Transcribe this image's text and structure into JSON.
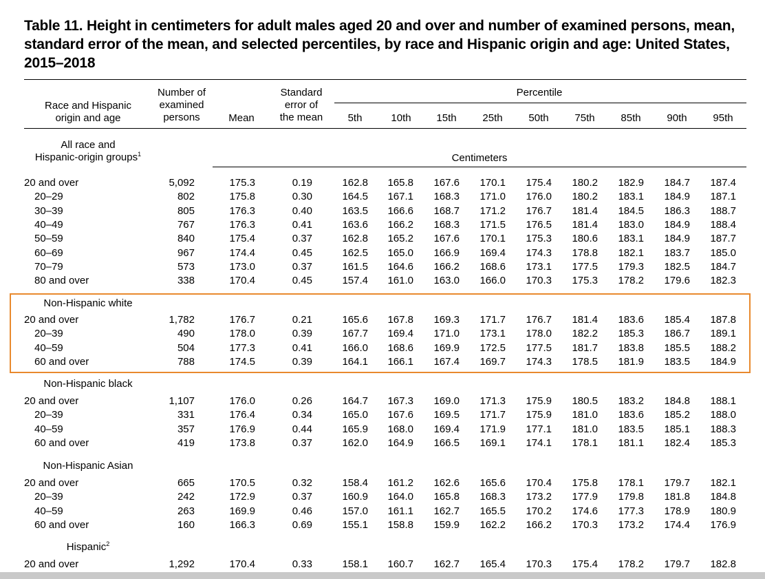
{
  "title": "Table 11. Height in centimeters for adult males aged 20 and over and number of examined persons, mean, standard error of the mean, and selected percentiles, by race and Hispanic origin and age: United States, 2015–2018",
  "headers": {
    "race_line1": "Race and Hispanic",
    "race_line2": "origin and age",
    "number_line1": "Number of",
    "number_line2": "examined",
    "number_line3": "persons",
    "mean": "Mean",
    "se_line1": "Standard",
    "se_line2": "error of",
    "se_line3": "the mean",
    "percentile": "Percentile",
    "percentiles": [
      "5th",
      "10th",
      "15th",
      "25th",
      "50th",
      "75th",
      "85th",
      "90th",
      "95th"
    ],
    "all_groups_line1": "All race and",
    "all_groups_line2": "Hispanic-origin groups",
    "all_groups_sup": "1",
    "centimeters": "Centimeters"
  },
  "sections": [
    {
      "name": "",
      "rows": [
        {
          "label": "20 and over",
          "n": "5,092",
          "mean": "175.3",
          "se": "0.19",
          "p": [
            "162.8",
            "165.8",
            "167.6",
            "170.1",
            "175.4",
            "180.2",
            "182.9",
            "184.7",
            "187.4"
          ]
        },
        {
          "label": "20–29",
          "n": "802",
          "mean": "175.8",
          "se": "0.30",
          "p": [
            "164.5",
            "167.1",
            "168.3",
            "171.0",
            "176.0",
            "180.2",
            "183.1",
            "184.9",
            "187.1"
          ]
        },
        {
          "label": "30–39",
          "n": "805",
          "mean": "176.3",
          "se": "0.40",
          "p": [
            "163.5",
            "166.6",
            "168.7",
            "171.2",
            "176.7",
            "181.4",
            "184.5",
            "186.3",
            "188.7"
          ]
        },
        {
          "label": "40–49",
          "n": "767",
          "mean": "176.3",
          "se": "0.41",
          "p": [
            "163.6",
            "166.2",
            "168.3",
            "171.5",
            "176.5",
            "181.4",
            "183.0",
            "184.9",
            "188.4"
          ]
        },
        {
          "label": "50–59",
          "n": "840",
          "mean": "175.4",
          "se": "0.37",
          "p": [
            "162.8",
            "165.2",
            "167.6",
            "170.1",
            "175.3",
            "180.6",
            "183.1",
            "184.9",
            "187.7"
          ]
        },
        {
          "label": "60–69",
          "n": "967",
          "mean": "174.4",
          "se": "0.45",
          "p": [
            "162.5",
            "165.0",
            "166.9",
            "169.4",
            "174.3",
            "178.8",
            "182.1",
            "183.7",
            "185.0"
          ]
        },
        {
          "label": "70–79",
          "n": "573",
          "mean": "173.0",
          "se": "0.37",
          "p": [
            "161.5",
            "164.6",
            "166.2",
            "168.6",
            "173.1",
            "177.5",
            "179.3",
            "182.5",
            "184.7"
          ]
        },
        {
          "label": "80 and over",
          "n": "338",
          "mean": "170.4",
          "se": "0.45",
          "p": [
            "157.4",
            "161.0",
            "163.0",
            "166.0",
            "170.3",
            "175.3",
            "178.2",
            "179.6",
            "182.3"
          ]
        }
      ]
    },
    {
      "name": "Non-Hispanic white",
      "rows": [
        {
          "label": "20 and over",
          "n": "1,782",
          "mean": "176.7",
          "se": "0.21",
          "p": [
            "165.6",
            "167.8",
            "169.3",
            "171.7",
            "176.7",
            "181.4",
            "183.6",
            "185.4",
            "187.8"
          ]
        },
        {
          "label": "20–39",
          "n": "490",
          "mean": "178.0",
          "se": "0.39",
          "p": [
            "167.7",
            "169.4",
            "171.0",
            "173.1",
            "178.0",
            "182.2",
            "185.3",
            "186.7",
            "189.1"
          ]
        },
        {
          "label": "40–59",
          "n": "504",
          "mean": "177.3",
          "se": "0.41",
          "p": [
            "166.0",
            "168.6",
            "169.9",
            "172.5",
            "177.5",
            "181.7",
            "183.8",
            "185.5",
            "188.2"
          ]
        },
        {
          "label": "60 and over",
          "n": "788",
          "mean": "174.5",
          "se": "0.39",
          "p": [
            "164.1",
            "166.1",
            "167.4",
            "169.7",
            "174.3",
            "178.5",
            "181.9",
            "183.5",
            "184.9"
          ]
        }
      ]
    },
    {
      "name": "Non-Hispanic black",
      "rows": [
        {
          "label": "20 and over",
          "n": "1,107",
          "mean": "176.0",
          "se": "0.26",
          "p": [
            "164.7",
            "167.3",
            "169.0",
            "171.3",
            "175.9",
            "180.5",
            "183.2",
            "184.8",
            "188.1"
          ]
        },
        {
          "label": "20–39",
          "n": "331",
          "mean": "176.4",
          "se": "0.34",
          "p": [
            "165.0",
            "167.6",
            "169.5",
            "171.7",
            "175.9",
            "181.0",
            "183.6",
            "185.2",
            "188.0"
          ]
        },
        {
          "label": "40–59",
          "n": "357",
          "mean": "176.9",
          "se": "0.44",
          "p": [
            "165.9",
            "168.0",
            "169.4",
            "171.9",
            "177.1",
            "181.0",
            "183.5",
            "185.1",
            "188.3"
          ]
        },
        {
          "label": "60 and over",
          "n": "419",
          "mean": "173.8",
          "se": "0.37",
          "p": [
            "162.0",
            "164.9",
            "166.5",
            "169.1",
            "174.1",
            "178.1",
            "181.1",
            "182.4",
            "185.3"
          ]
        }
      ]
    },
    {
      "name": "Non-Hispanic Asian",
      "rows": [
        {
          "label": "20 and over",
          "n": "665",
          "mean": "170.5",
          "se": "0.32",
          "p": [
            "158.4",
            "161.2",
            "162.6",
            "165.6",
            "170.4",
            "175.8",
            "178.1",
            "179.7",
            "182.1"
          ]
        },
        {
          "label": "20–39",
          "n": "242",
          "mean": "172.9",
          "se": "0.37",
          "p": [
            "160.9",
            "164.0",
            "165.8",
            "168.3",
            "173.2",
            "177.9",
            "179.8",
            "181.8",
            "184.8"
          ]
        },
        {
          "label": "40–59",
          "n": "263",
          "mean": "169.9",
          "se": "0.46",
          "p": [
            "157.0",
            "161.1",
            "162.7",
            "165.5",
            "170.2",
            "174.6",
            "177.3",
            "178.9",
            "180.9"
          ]
        },
        {
          "label": "60 and over",
          "n": "160",
          "mean": "166.3",
          "se": "0.69",
          "p": [
            "155.1",
            "158.8",
            "159.9",
            "162.2",
            "166.2",
            "170.3",
            "173.2",
            "174.4",
            "176.9"
          ]
        }
      ]
    },
    {
      "name": "Hispanic",
      "name_sup": "2",
      "rows": [
        {
          "label": "20 and over",
          "n": "1,292",
          "mean": "170.4",
          "se": "0.33",
          "p": [
            "158.1",
            "160.7",
            "162.7",
            "165.4",
            "170.3",
            "175.4",
            "178.2",
            "179.7",
            "182.8"
          ]
        }
      ]
    }
  ]
}
